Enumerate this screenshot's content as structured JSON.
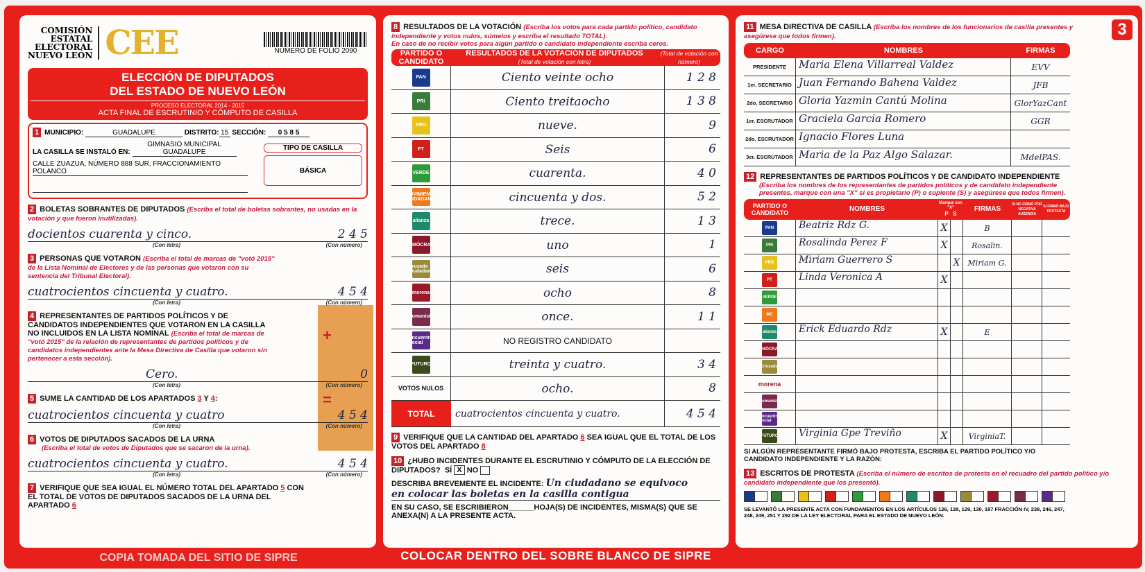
{
  "header": {
    "org": [
      "COMISIÓN",
      "ESTATAL",
      "ELECTORAL",
      "NUEVO LEÓN"
    ],
    "logo": "CEE",
    "folio": "NUMERO DE FOLIO 2090",
    "title1": "ELECCIÓN DE DIPUTADOS",
    "title2": "DEL ESTADO DE NUEVO LEÓN",
    "process": "PROCESO ELECTORAL 2014 - 2015",
    "acta": "ACTA FINAL DE ESCRUTINIO Y CÓMPUTO DE CASILLA"
  },
  "s1": {
    "n": "1",
    "municipio_label": "MUNICIPIO:",
    "municipio": "GUADALUPE",
    "distrito_label": "DISTRITO:",
    "distrito": "15",
    "seccion_label": "SECCIÓN:",
    "seccion": "0 5 8 5",
    "instalo_label": "LA CASILLA SE INSTALÓ EN:",
    "lugar": "GIMNASIO MUNICIPAL GUADALUPE",
    "direccion": "CALLE ZUAZUA, NÚMERO 888 SUR, FRACCIONAMIENTO POLANCO",
    "tipo_label": "TIPO DE CASILLA",
    "tipo": "BÁSICA"
  },
  "captions": {
    "letra": "(Con letra)",
    "numero": "(Con número)"
  },
  "s2": {
    "n": "2",
    "title": "BOLETAS SOBRANTES DE DIPUTADOS",
    "inst": "(Escriba el total de boletas sobrantes, no usadas en la votación y que fueron inutilizadas).",
    "letra": "docientos cuarenta y cinco.",
    "numero": "2 4 5"
  },
  "s3": {
    "n": "3",
    "title": "PERSONAS QUE VOTARON",
    "inst": "(Escriba el total de marcas de \"votó 2015\" de la Lista Nominal de Electores y de las personas que votaron con su sentencia del Tribunal Electoral).",
    "letra": "cuatrocientos cincuenta y cuatro.",
    "numero": "4 5 4"
  },
  "s4": {
    "n": "4",
    "title": "REPRESENTANTES DE PARTIDOS POLÍTICOS Y DE CANDIDATOS INDEPENDIENTES QUE VOTARON EN LA CASILLA NO INCLUIDOS EN LA LISTA NOMINAL",
    "inst": "(Escriba el total de marcas de \"votó 2015\" de la relación de representantes de partidos políticos y de candidatos independientes ante la Mesa Directiva de Casilla que votaron sin pertenecer a esta sección).",
    "letra": "Cero.",
    "numero": "0",
    "plus": "+",
    "eq": "="
  },
  "s5": {
    "n": "5",
    "title": "SUME LA CANTIDAD DE LOS APARTADOS",
    "a": "3",
    "y": "Y",
    "b": "4",
    "letra": "cuatrocientos cincuenta y cuatro",
    "numero": "4 5 4"
  },
  "s6": {
    "n": "6",
    "title": "VOTOS DE DIPUTADOS SACADOS DE LA URNA",
    "inst": "(Escriba el total de votos de Diputados que se sacaron de la urna).",
    "letra": "cuatrocientos cincuenta y cuatro.",
    "numero": "4 5 4"
  },
  "s7": {
    "n": "7",
    "text1": "VERIFIQUE QUE SEA IGUAL EL NÚMERO TOTAL DEL APARTADO",
    "a": "5",
    "text2": "CON EL TOTAL DE VOTOS DE DIPUTADOS SACADOS DE LA URNA DEL APARTADO",
    "b": "6"
  },
  "s8": {
    "n": "8",
    "title": "RESULTADOS DE LA VOTACIÓN",
    "inst": "(Escriba los votos para cada partido político, candidato independiente y votos nulos, súmelos y escriba el resultado TOTAL).",
    "inst2": "En caso de no recibir votos para algún partido o candidato independiente escriba ceros.",
    "col1": "PARTIDO O CANDIDATO",
    "col2": "RESULTADOS DE LA VOTACIÓN DE DIPUTADOS",
    "col2sub": "(Total de votación con letra)",
    "col3": "(Total de votación con número)",
    "rows": [
      {
        "party": "PAN",
        "color": "#1a3a8c",
        "letra": "Ciento veinte ocho",
        "numero": "1 2 8"
      },
      {
        "party": "PRI",
        "color": "#3a7a3a",
        "letra": "Ciento treitaocho",
        "numero": "1 3 8"
      },
      {
        "party": "PRD",
        "color": "#e8c21a",
        "letra": "nueve.",
        "numero": "9"
      },
      {
        "party": "PT",
        "color": "#d0201a",
        "letra": "Seis",
        "numero": "6"
      },
      {
        "party": "VERDE",
        "color": "#2f9a3a",
        "letra": "cuarenta.",
        "numero": "4 0"
      },
      {
        "party": "MOVIMIENTO CIUDADANO",
        "color": "#f07a1a",
        "letra": "cincuenta y dos.",
        "numero": "5 2"
      },
      {
        "party": "alianza",
        "color": "#1e8a6a",
        "letra": "trece.",
        "numero": "1 3"
      },
      {
        "party": "DEMÓCRATA",
        "color": "#8a1a2a",
        "letra": "uno",
        "numero": "1"
      },
      {
        "party": "Cruzada Ciudadana",
        "color": "#9a8a3a",
        "letra": "seis",
        "numero": "6"
      },
      {
        "party": "morena",
        "color": "#9a1a2a",
        "letra": "ocho",
        "numero": "8"
      },
      {
        "party": "Humanista",
        "color": "#7a2a4a",
        "letra": "once.",
        "numero": "1 1"
      },
      {
        "party": "encuentro social",
        "color": "#5a2a8a",
        "letra": "NO REGISTRO CANDIDATO",
        "numero": ""
      },
      {
        "party": "FUTURO",
        "color": "#3a4a1a",
        "letra": "treinta y cuatro.",
        "numero": "3 4"
      },
      {
        "party": "VOTOS NULOS",
        "color": "",
        "letra": "ocho.",
        "numero": "8"
      }
    ],
    "total_label": "TOTAL",
    "total_letra": "cuatrocientos cincuenta y cuatro.",
    "total_numero": "4 5 4"
  },
  "s9": {
    "n": "9",
    "text1": "VERIFIQUE QUE LA CANTIDAD DEL APARTADO",
    "a": "6",
    "text2": "SEA IGUAL QUE EL TOTAL DE LOS VOTOS DEL APARTADO",
    "b": "8"
  },
  "s10": {
    "n": "10",
    "q": "¿HUBO INCIDENTES DURANTE EL ESCRUTINIO Y CÓMPUTO DE LA ELECCIÓN DE DIPUTADOS?",
    "si": "SÍ",
    "si_mark": "X",
    "no": "NO",
    "describa": "DESCRIBA BREVEMENTE EL INCIDENTE:",
    "incidente1": "Un ciudadano se equivoco",
    "incidente2": "en colocar las boletas en la casilla contigua",
    "hojas1": "EN SU CASO, SE ESCRIBIERON",
    "hojas2": "HOJA(S) DE INCIDENTES, MISMA(S) QUE SE ANEXA(N) A LA PRESENTE ACTA."
  },
  "footer": "COLOCAR DENTRO DEL SOBRE BLANCO DE SIPRE",
  "watermark": "COPIA TOMADA DEL SITIO DE SIPRE",
  "s11": {
    "n": "11",
    "page": "3",
    "title": "MESA DIRECTIVA DE CASILLA",
    "inst": "(Escriba los nombres de los funcionarios de casilla presentes y asegúrese que todos firmen).",
    "cols": [
      "CARGO",
      "NOMBRES",
      "FIRMAS"
    ],
    "rows": [
      {
        "cargo": "PRESIDENTE",
        "nombre": "Maria Elena Villarreal Valdez",
        "firma": "EVV"
      },
      {
        "cargo": "1er. SECRETARIO",
        "nombre": "Juan Fernando Bahena Valdez",
        "firma": "JFB"
      },
      {
        "cargo": "2do. SECRETARIO",
        "nombre": "Gloria Yazmin Cantú Molina",
        "firma": "GlorYazCant"
      },
      {
        "cargo": "1er. ESCRUTADOR",
        "nombre": "Graciela Garcia Romero",
        "firma": "GGR"
      },
      {
        "cargo": "2do. ESCRUTADOR",
        "nombre": "Ignacio Flores Luna",
        "firma": ""
      },
      {
        "cargo": "3er. ESCRUTADOR",
        "nombre": "Maria de la Paz Algo Salazar.",
        "firma": "MdelPAS."
      }
    ]
  },
  "s12": {
    "n": "12",
    "title": "REPRESENTANTES DE PARTIDOS POLÍTICOS Y DE CANDIDATO INDEPENDIENTE",
    "inst": "(Escriba los nombres de los representantes de partidos políticos y de candidato independiente presentes, marque con una \"X\" si es propietario (P) o suplente (S) y asegúrese que todos firmen).",
    "cols": [
      "PARTIDO O CANDIDATO",
      "NOMBRES",
      "P",
      "S",
      "FIRMAS"
    ],
    "marque": "Marque con \"X\"",
    "c6": "SI NO FIRMÓ POR",
    "c6a": "NEGATIVA",
    "c6b": "AUSENCIA",
    "c7": "SI FIRMÓ BAJO PROTESTA",
    "rows": [
      {
        "party": "PAN",
        "color": "#1a3a8c",
        "nombre": "Beatriz Rdz G.",
        "p": "X",
        "s": "",
        "firma": "B"
      },
      {
        "party": "PRI",
        "color": "#3a7a3a",
        "nombre": "Rosalinda Perez F",
        "p": "X",
        "s": "",
        "firma": "Rosalin."
      },
      {
        "party": "PRD",
        "color": "#e8c21a",
        "nombre": "Miriam Guerrero S",
        "p": "",
        "s": "X",
        "firma": "Miriam G."
      },
      {
        "party": "PT",
        "color": "#d0201a",
        "nombre": "Linda Veronica A",
        "p": "X",
        "s": "",
        "firma": ""
      },
      {
        "party": "VERDE",
        "color": "#2f9a3a",
        "nombre": "",
        "p": "",
        "s": "",
        "firma": ""
      },
      {
        "party": "MC",
        "color": "#f07a1a",
        "nombre": "",
        "p": "",
        "s": "",
        "firma": ""
      },
      {
        "party": "alianza",
        "color": "#1e8a6a",
        "nombre": "Erick Eduardo Rdz",
        "p": "X",
        "s": "",
        "firma": "E"
      },
      {
        "party": "DEMÓCRATA",
        "color": "#8a1a2a",
        "nombre": "",
        "p": "",
        "s": "",
        "firma": ""
      },
      {
        "party": "Cruzada",
        "color": "#9a8a3a",
        "nombre": "",
        "p": "",
        "s": "",
        "firma": ""
      },
      {
        "party": "morena",
        "color": "",
        "nombre": "",
        "p": "",
        "s": "",
        "firma": ""
      },
      {
        "party": "Humanista",
        "color": "#7a2a4a",
        "nombre": "",
        "p": "",
        "s": "",
        "firma": ""
      },
      {
        "party": "encuentro social",
        "color": "#5a2a8a",
        "nombre": "",
        "p": "",
        "s": "",
        "firma": ""
      },
      {
        "party": "FUTURO",
        "color": "#3a4a1a",
        "nombre": "Virginia Gpe Treviño",
        "p": "X",
        "s": "",
        "firma": "VirginiaT."
      }
    ],
    "protesta": "SI ALGÚN REPRESENTANTE FIRMÓ BAJO PROTESTA, ESCRIBA EL PARTIDO POLÍTICO Y/O CANDIDATO INDEPENDIENTE Y LA RAZÓN:"
  },
  "s13": {
    "n": "13",
    "title": "ESCRITOS DE PROTESTA",
    "inst": "(Escriba el número de escritos de protesta en el recuadro del partido político y/o candidato independiente que los presentó).",
    "colors": [
      "#1a3a8c",
      "#3a7a3a",
      "#e8c21a",
      "#d0201a",
      "#2f9a3a",
      "#f07a1a",
      "#1e8a6a",
      "#8a1a2a",
      "#9a8a3a",
      "#9a1a2a",
      "#7a2a4a",
      "#5a2a8a"
    ],
    "legal": "SE LEVANTÓ LA PRESENTE ACTA CON FUNDAMENTOS EN LOS ARTÍCULOS 126, 128, 129, 130, 187 FRACCIÓN IV, 238, 246, 247, 248, 249, 251 Y 292 DE LA LEY ELECTORAL PARA EL ESTADO DE NUEVO LEÓN."
  }
}
